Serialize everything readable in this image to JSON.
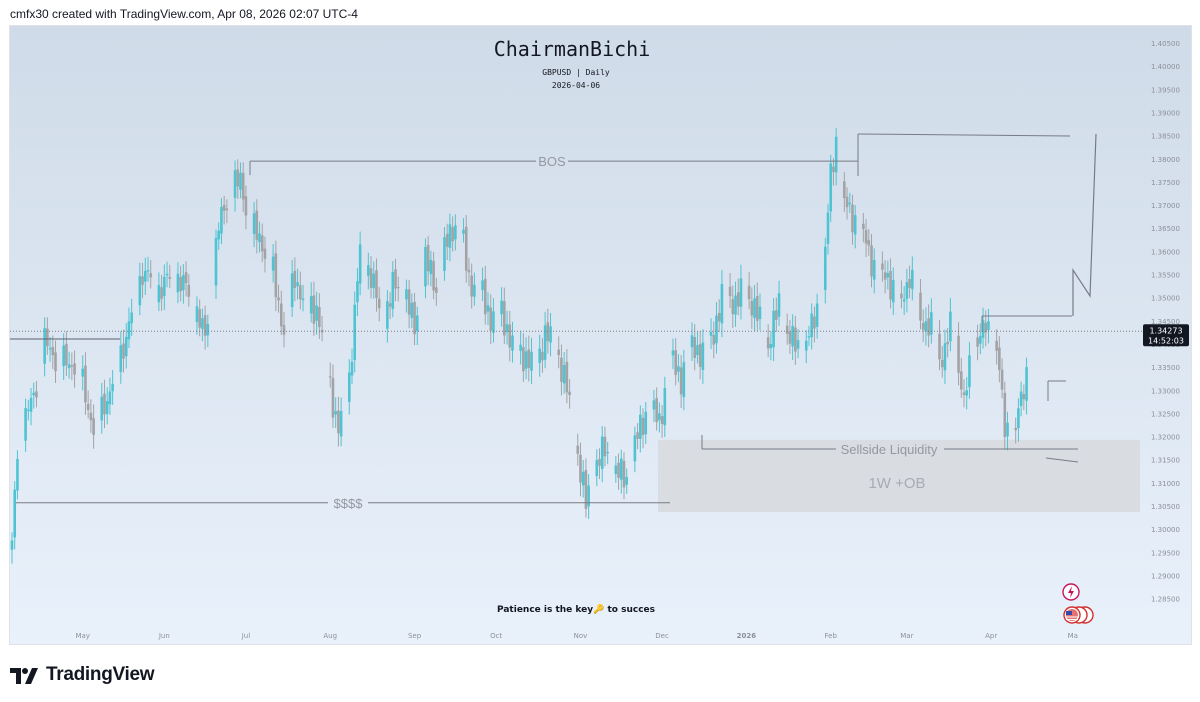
{
  "header": {
    "caption": "cmfx30 created with TradingView.com, Apr 08, 2026 02:07 UTC-4"
  },
  "footer": {
    "brand": "TradingView"
  },
  "colors": {
    "bull": "#4fc3d1",
    "bear": "#a3a3a6",
    "bg_top": "#cfdbe8",
    "bg_bottom": "#e9f1fb",
    "line": "#787b86",
    "zone": "#d7d9dd"
  },
  "chart_data": {
    "type": "candlestick",
    "title": "ChairmanBichi",
    "subtitle": "GBPUSD | Daily",
    "date": "2026-04-06",
    "footnote": "Patience is the key🔑 to succes",
    "ylim": [
      1.2835,
      1.4105
    ],
    "y_ticks": [
      "1.40500",
      "1.40000",
      "1.39500",
      "1.39000",
      "1.38500",
      "1.38000",
      "1.37500",
      "1.37000",
      "1.36500",
      "1.36000",
      "1.35500",
      "1.35000",
      "1.34500",
      "1.34000",
      "1.33500",
      "1.33000",
      "1.32500",
      "1.32000",
      "1.31500",
      "1.31000",
      "1.30500",
      "1.30000",
      "1.29500",
      "1.29000",
      "1.28500"
    ],
    "x_ticks": [
      "May",
      "Jun",
      "Jul",
      "Aug",
      "Sep",
      "Oct",
      "Nov",
      "Dec",
      "2026",
      "Feb",
      "Mar",
      "Apr",
      "Ma"
    ],
    "x_tick_days": [
      26,
      56,
      86,
      117,
      148,
      178,
      209,
      239,
      270,
      301,
      329,
      360,
      390
    ],
    "price_label": {
      "price": "1.34273",
      "countdown": "14:52:03",
      "value": 1.34273
    },
    "anchors": [
      [
        0,
        1.296
      ],
      [
        2,
        1.318
      ],
      [
        8,
        1.329
      ],
      [
        12,
        1.34
      ],
      [
        18,
        1.336
      ],
      [
        24,
        1.336
      ],
      [
        30,
        1.322
      ],
      [
        36,
        1.33
      ],
      [
        42,
        1.342
      ],
      [
        48,
        1.356
      ],
      [
        54,
        1.352
      ],
      [
        60,
        1.355
      ],
      [
        66,
        1.35
      ],
      [
        71,
        1.341
      ],
      [
        76,
        1.365
      ],
      [
        80,
        1.373
      ],
      [
        84,
        1.375
      ],
      [
        88,
        1.365
      ],
      [
        92,
        1.362
      ],
      [
        96,
        1.355
      ],
      [
        100,
        1.343
      ],
      [
        104,
        1.355
      ],
      [
        108,
        1.348
      ],
      [
        112,
        1.348
      ],
      [
        116,
        1.335
      ],
      [
        120,
        1.321
      ],
      [
        124,
        1.333
      ],
      [
        128,
        1.36
      ],
      [
        132,
        1.355
      ],
      [
        136,
        1.344
      ],
      [
        140,
        1.352
      ],
      [
        144,
        1.352
      ],
      [
        148,
        1.343
      ],
      [
        152,
        1.358
      ],
      [
        156,
        1.352
      ],
      [
        160,
        1.362
      ],
      [
        164,
        1.368
      ],
      [
        168,
        1.354
      ],
      [
        172,
        1.352
      ],
      [
        176,
        1.346
      ],
      [
        180,
        1.347
      ],
      [
        184,
        1.34
      ],
      [
        188,
        1.338
      ],
      [
        192,
        1.335
      ],
      [
        196,
        1.342
      ],
      [
        200,
        1.34
      ],
      [
        204,
        1.33
      ],
      [
        208,
        1.316
      ],
      [
        211,
        1.305
      ],
      [
        214,
        1.313
      ],
      [
        218,
        1.317
      ],
      [
        222,
        1.312
      ],
      [
        226,
        1.311
      ],
      [
        230,
        1.32
      ],
      [
        234,
        1.327
      ],
      [
        238,
        1.323
      ],
      [
        242,
        1.337
      ],
      [
        246,
        1.333
      ],
      [
        250,
        1.34
      ],
      [
        254,
        1.338
      ],
      [
        258,
        1.343
      ],
      [
        262,
        1.352
      ],
      [
        266,
        1.349
      ],
      [
        270,
        1.352
      ],
      [
        274,
        1.346
      ],
      [
        278,
        1.34
      ],
      [
        282,
        1.348
      ],
      [
        286,
        1.341
      ],
      [
        290,
        1.338
      ],
      [
        294,
        1.343
      ],
      [
        298,
        1.352
      ],
      [
        301,
        1.376
      ],
      [
        303,
        1.384
      ],
      [
        306,
        1.37
      ],
      [
        310,
        1.367
      ],
      [
        314,
        1.362
      ],
      [
        318,
        1.355
      ],
      [
        322,
        1.355
      ],
      [
        326,
        1.348
      ],
      [
        330,
        1.355
      ],
      [
        334,
        1.346
      ],
      [
        338,
        1.343
      ],
      [
        342,
        1.337
      ],
      [
        346,
        1.345
      ],
      [
        350,
        1.327
      ],
      [
        354,
        1.341
      ],
      [
        358,
        1.343
      ],
      [
        362,
        1.34
      ],
      [
        365,
        1.321
      ],
      [
        369,
        1.322
      ],
      [
        372,
        1.33
      ],
      [
        375,
        1.342
      ]
    ],
    "annotations": [
      {
        "label": "BOS",
        "type": "level",
        "price": 1.3795
      },
      {
        "label": "$$$$",
        "type": "level",
        "price": 1.3057
      },
      {
        "label": "Sellside Liquidity",
        "type": "level",
        "price": 1.3173
      },
      {
        "label": "1W +OB",
        "type": "zone",
        "y_range": [
          1.3037,
          1.3193
        ]
      }
    ]
  }
}
